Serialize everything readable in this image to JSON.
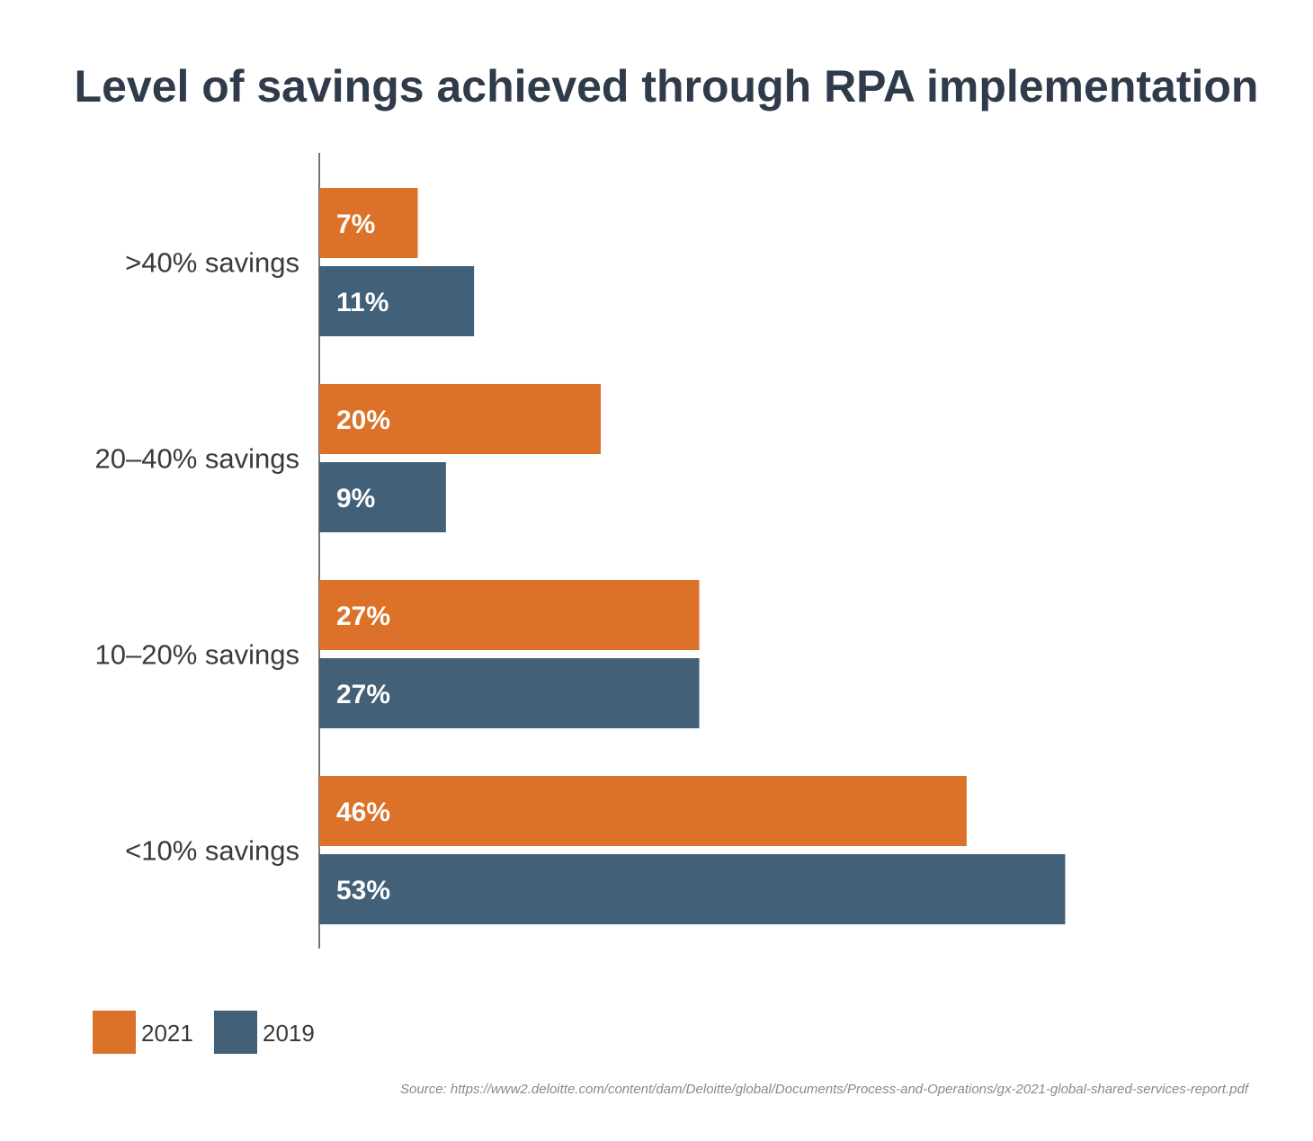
{
  "chart_data": {
    "type": "bar",
    "orientation": "horizontal",
    "title": "Level of savings achieved through RPA implementation",
    "categories": [
      ">40% savings",
      "20–40% savings",
      "10–20% savings",
      "<10% savings"
    ],
    "series": [
      {
        "name": "2021",
        "color": "#dc7229",
        "values": [
          7,
          20,
          27,
          46
        ],
        "labels": [
          "7%",
          "20%",
          "27%",
          "46%"
        ]
      },
      {
        "name": "2019",
        "color": "#426078",
        "values": [
          11,
          9,
          27,
          53
        ],
        "labels": [
          "11%",
          "9%",
          "27%",
          "53%"
        ]
      }
    ],
    "xlim": [
      0,
      60
    ],
    "grid": false,
    "legend_position": "bottom-left",
    "source": "Source: https://www2.deloitte.com/content/dam/Deloitte/global/Documents/Process-and-Operations/gx-2021-global-shared-services-report.pdf"
  }
}
